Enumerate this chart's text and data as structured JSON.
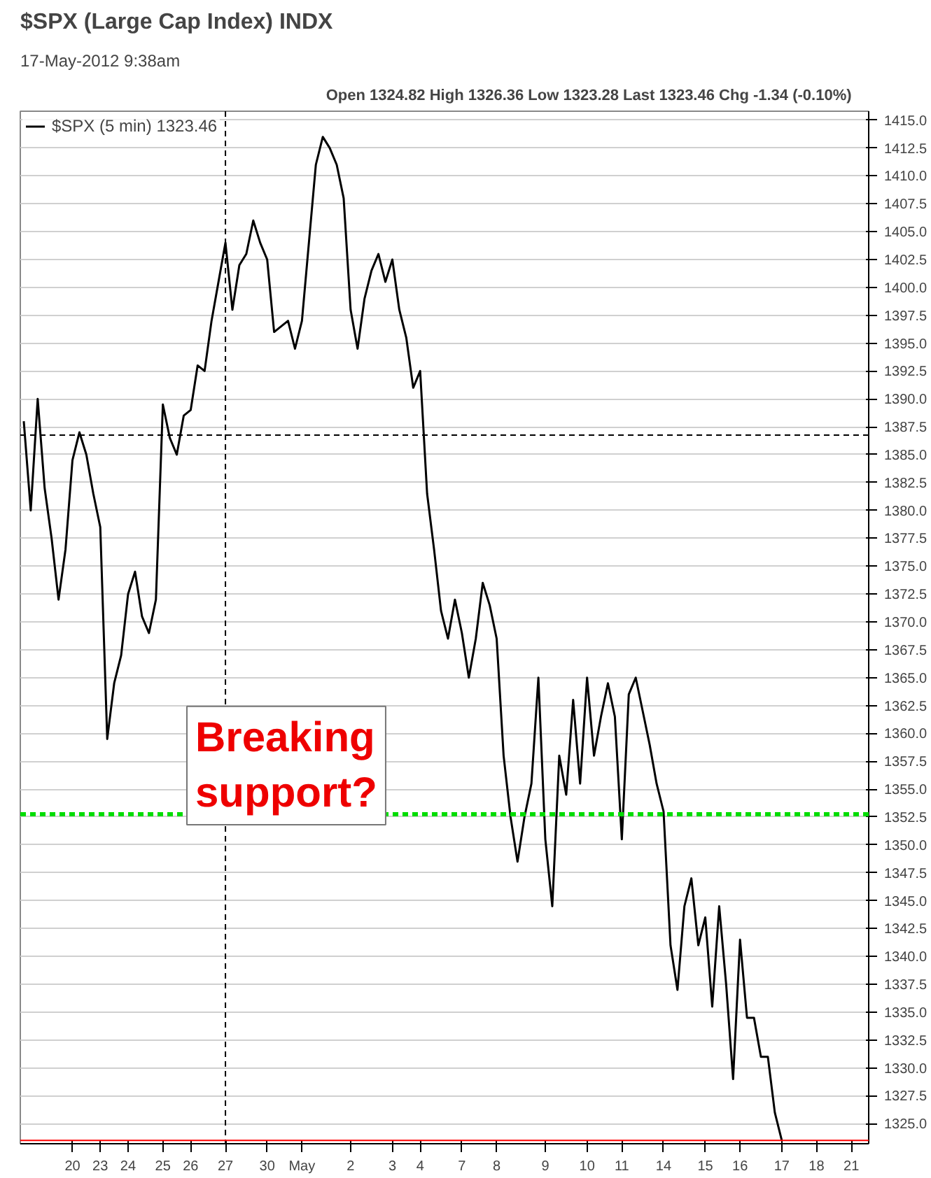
{
  "chart_data": {
    "type": "line",
    "title": "$SPX (Large Cap Index) INDX",
    "subtitle": "17-May-2012 9:38am",
    "annotations": [
      "Open 1324.82  High 1326.36  Low 1323.28  Last 1323.46  Chg -1.34 (-0.10%)",
      "Breaking support?"
    ],
    "categories": [
      null,
      null,
      null,
      null,
      null,
      null,
      null,
      "20",
      null,
      null,
      null,
      "23",
      null,
      null,
      null,
      "24",
      null,
      null,
      null,
      null,
      "25",
      null,
      null,
      null,
      "26",
      null,
      null,
      null,
      null,
      "27",
      null,
      null,
      null,
      null,
      null,
      "30",
      null,
      null,
      null,
      null,
      "May",
      null,
      null,
      null,
      null,
      null,
      null,
      "2",
      null,
      null,
      null,
      null,
      null,
      "3",
      null,
      null,
      null,
      "4",
      null,
      null,
      null,
      null,
      null,
      "7",
      null,
      null,
      null,
      null,
      "8",
      null,
      null,
      null,
      null,
      null,
      null,
      "9",
      null,
      null,
      null,
      null,
      null,
      "10",
      null,
      null,
      null,
      null,
      "11",
      null,
      null,
      null,
      null,
      null,
      "14",
      null,
      null,
      null,
      null,
      null,
      "15",
      null,
      null,
      null,
      null,
      "16",
      null,
      null,
      null,
      null,
      null,
      "17",
      null,
      null,
      null,
      null,
      "18",
      null,
      null,
      null,
      null,
      "21",
      null,
      null
    ],
    "series": [
      {
        "name": "$SPX (5 min) 1323.46",
        "color": "#000000",
        "values": [
          1388.0,
          1380.0,
          1390.0,
          1382.0,
          1377.5,
          1372.0,
          1376.5,
          1384.5,
          1387.0,
          1385.0,
          1381.5,
          1378.5,
          1359.5,
          1364.5,
          1367.0,
          1372.5,
          1374.5,
          1370.5,
          1369.0,
          1372.0,
          1389.5,
          1386.5,
          1385.0,
          1388.5,
          1389.0,
          1393.0,
          1392.5,
          1397.0,
          1400.5,
          1404.0,
          1398.0,
          1402.0,
          1403.0,
          1406.0,
          1404.0,
          1402.5,
          1396.0,
          1396.5,
          1397.0,
          1394.5,
          1397.0,
          1404.0,
          1411.0,
          1413.5,
          1412.5,
          1411.0,
          1408.0,
          1398.0,
          1394.5,
          1399.0,
          1401.5,
          1403.0,
          1400.5,
          1402.5,
          1398.0,
          1395.5,
          1391.0,
          1392.5,
          1381.5,
          1376.5,
          1371.0,
          1368.5,
          1372.0,
          1369.0,
          1365.0,
          1368.5,
          1373.5,
          1371.5,
          1368.5,
          1358.0,
          1352.5,
          1348.5,
          1352.5,
          1355.5,
          1365.0,
          1350.5,
          1344.5,
          1358.0,
          1354.5,
          1363.0,
          1355.5,
          1365.0,
          1358.0,
          1361.5,
          1364.5,
          1361.5,
          1350.5,
          1363.5,
          1365.0,
          1362.0,
          1359.0,
          1355.5,
          1353.0,
          1341.0,
          1337.0,
          1344.5,
          1347.0,
          1341.0,
          1343.5,
          1335.5,
          1344.5,
          1337.5,
          1329.0,
          1341.5,
          1334.5,
          1334.5,
          1331.0,
          1331.0,
          1326.0,
          1323.5,
          null,
          null,
          null,
          null,
          null,
          null,
          null,
          null,
          null,
          null,
          null,
          null
        ]
      }
    ],
    "ylim": [
      1323.2,
      1415.8
    ],
    "yticks": [
      {
        "value": 1325,
        "label": "1325.0"
      },
      {
        "value": 1327.5,
        "label": "1327.5"
      },
      {
        "value": 1330,
        "label": "1330.0"
      },
      {
        "value": 1332.5,
        "label": "1332.5"
      },
      {
        "value": 1335,
        "label": "1335.0"
      },
      {
        "value": 1337.5,
        "label": "1337.5"
      },
      {
        "value": 1340,
        "label": "1340.0"
      },
      {
        "value": 1342.5,
        "label": "1342.5"
      },
      {
        "value": 1345,
        "label": "1345.0"
      },
      {
        "value": 1347.5,
        "label": "1347.5"
      },
      {
        "value": 1350,
        "label": "1350.0"
      },
      {
        "value": 1352.5,
        "label": "1352.5"
      },
      {
        "value": 1355,
        "label": "1355.0"
      },
      {
        "value": 1357.5,
        "label": "1357.5"
      },
      {
        "value": 1360,
        "label": "1360.0"
      },
      {
        "value": 1362.5,
        "label": "1362.5"
      },
      {
        "value": 1365,
        "label": "1365.0"
      },
      {
        "value": 1367.5,
        "label": "1367.5"
      },
      {
        "value": 1370,
        "label": "1370.0"
      },
      {
        "value": 1372.5,
        "label": "1372.5"
      },
      {
        "value": 1375,
        "label": "1375.0"
      },
      {
        "value": 1377.5,
        "label": "1377.5"
      },
      {
        "value": 1380,
        "label": "1380.0"
      },
      {
        "value": 1382.5,
        "label": "1382.5"
      },
      {
        "value": 1385,
        "label": "1385.0"
      },
      {
        "value": 1387.5,
        "label": "1387.5"
      },
      {
        "value": 1390,
        "label": "1390.0"
      },
      {
        "value": 1392.5,
        "label": "1392.5"
      },
      {
        "value": 1395,
        "label": "1395.0"
      },
      {
        "value": 1397.5,
        "label": "1397.5"
      },
      {
        "value": 1400,
        "label": "1400.0"
      },
      {
        "value": 1402.5,
        "label": "1402.5"
      },
      {
        "value": 1405,
        "label": "1405.0"
      },
      {
        "value": 1407.5,
        "label": "1407.5"
      },
      {
        "value": 1410,
        "label": "1410.0"
      },
      {
        "value": 1412.5,
        "label": "1412.5"
      },
      {
        "value": 1415,
        "label": "1415.0"
      }
    ],
    "ref_lines": [
      {
        "axis": "y",
        "value": 1386.75,
        "color": "#000000",
        "line_style": "dashed"
      },
      {
        "axis": "x",
        "value": "27",
        "color": "#000000",
        "line_style": "dashed"
      },
      {
        "axis": "y",
        "value": 1352.75,
        "color": "#00dd00",
        "line_style": "dashed"
      },
      {
        "axis": "y",
        "value": 1323.5,
        "color": "#ff0000",
        "line_style": "solid"
      }
    ],
    "grid": "y",
    "legend": "top left",
    "marker": "none",
    "line_style": "solid"
  }
}
